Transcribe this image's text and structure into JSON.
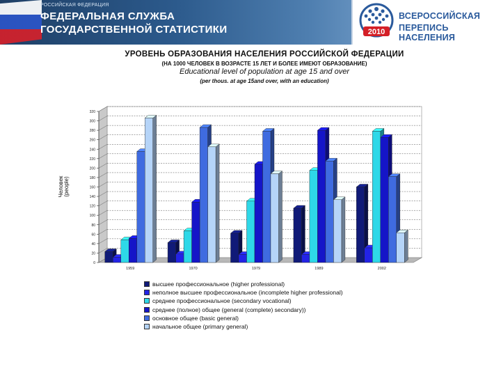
{
  "header": {
    "org_small": "РОССИЙСКАЯ ФЕДЕРАЦИЯ",
    "org_line1": "ФЕДЕРАЛЬНАЯ СЛУЖБА",
    "org_line2": "ГОСУДАРСТВЕННОЙ СТАТИСТИКИ",
    "census_line1": "ВСЕРОССИЙСКАЯ",
    "census_line2": "ПЕРЕПИСЬ НАСЕЛЕНИЯ",
    "census_year": "2010"
  },
  "colors": {
    "banner": "#2c5a8c",
    "census_text": "#2a5a9c",
    "series": [
      "#101a78",
      "#2323e6",
      "#2ed8e8",
      "#1515c8",
      "#3f6be0",
      "#b5d4f8"
    ]
  },
  "chart_data": {
    "type": "bar",
    "title": "УРОВЕНЬ ОБРАЗОВАНИЯ НАСЕЛЕНИЯ РОССИЙСКОЙ ФЕДЕРАЦИИ",
    "subtitle": "(НА 1000 ЧЕЛОВЕК В ВОЗРАСТЕ 15 ЛЕТ И БОЛЕЕ ИМЕЮТ ОБРАЗОВАНИЕ)",
    "title_en": "Educational level of population at age 15 and over",
    "subtitle_en": "(per thous. at age 15and over, with an education)",
    "xlabel": "",
    "ylabel_line1": "Человек",
    "ylabel_line2": "(people)",
    "ylim": [
      0,
      320
    ],
    "yticks": [
      "0",
      "20",
      "40",
      "60",
      "80",
      "100",
      "120",
      "140",
      "160",
      "180",
      "200",
      "220",
      "240",
      "260",
      "280",
      "300",
      "320"
    ],
    "categories": [
      "1959",
      "1970",
      "1979",
      "1989",
      "2002"
    ],
    "series": [
      {
        "name": "высшее профессиональное (higher professional)",
        "values": [
          23,
          42,
          62,
          115,
          160
        ]
      },
      {
        "name": "неполное высшее профессиональное (incomplete higher professional)",
        "values": [
          11,
          18,
          17,
          17,
          31
        ]
      },
      {
        "name": "среднее профессиональное (secondary vocational)",
        "values": [
          48,
          67,
          130,
          195,
          278
        ]
      },
      {
        "name": "среднее (полное) общее (general (complete) secondary))",
        "values": [
          51,
          128,
          208,
          280,
          265
        ]
      },
      {
        "name": "основное общее (basic general)",
        "values": [
          235,
          286,
          278,
          215,
          182
        ]
      },
      {
        "name": "начальное общее (primary general)",
        "values": [
          306,
          245,
          188,
          133,
          63
        ]
      }
    ],
    "grid": true,
    "legend_position": "bottom"
  }
}
